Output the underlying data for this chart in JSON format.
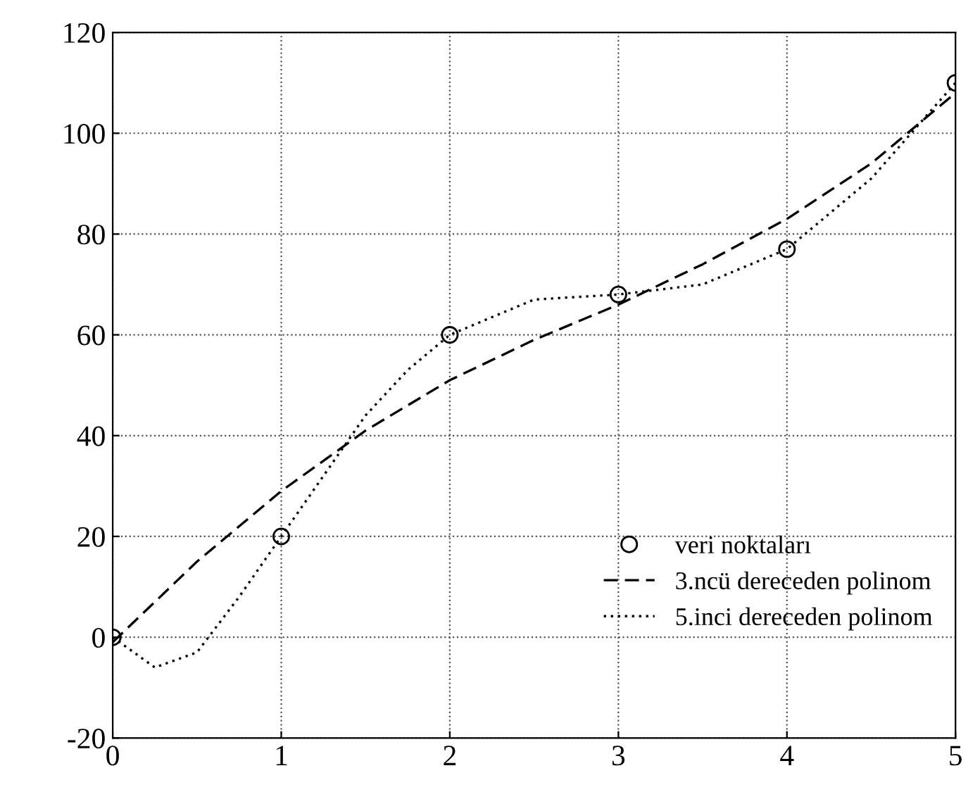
{
  "chart_data": {
    "type": "line",
    "xlim": [
      0,
      5
    ],
    "xticks": [
      0,
      1,
      2,
      3,
      4,
      5
    ],
    "ylim": [
      -20,
      120
    ],
    "yticks": [
      -20,
      0,
      20,
      40,
      60,
      80,
      100,
      120
    ],
    "grid": true,
    "legend": "bottom right",
    "series": [
      {
        "name": "veri noktaları",
        "type": "scatter",
        "marker": "circle",
        "color": "#000000",
        "x": [
          0,
          1,
          2,
          3,
          4,
          5
        ],
        "values": [
          0,
          20,
          60,
          68,
          77,
          110
        ]
      },
      {
        "name": "3.ncü dereceden polinom",
        "line_style": "dashed",
        "color": "#000000",
        "x": [
          0,
          0.5,
          1,
          1.5,
          2,
          2.5,
          3,
          3.5,
          4,
          4.5,
          5
        ],
        "values": [
          -1,
          15,
          29,
          41,
          51,
          59,
          66,
          74,
          83,
          94,
          108
        ]
      },
      {
        "name": "5.inci dereceden polinom",
        "line_style": "dotted",
        "color": "#000000",
        "x": [
          0,
          0.25,
          0.5,
          0.75,
          1,
          1.25,
          1.5,
          1.75,
          2,
          2.5,
          3,
          3.5,
          4,
          4.5,
          5
        ],
        "values": [
          0,
          -6,
          -3,
          8,
          20,
          32,
          44,
          53,
          60,
          67,
          68,
          70,
          77,
          91,
          110
        ]
      }
    ]
  }
}
